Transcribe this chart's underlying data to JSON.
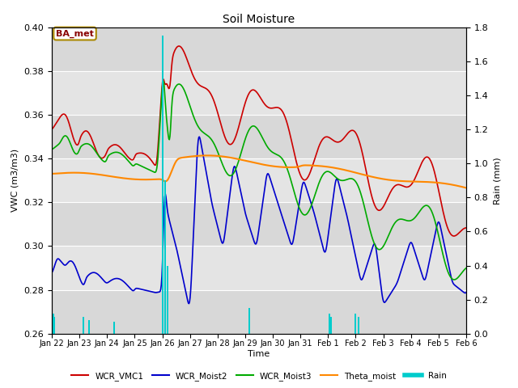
{
  "title": "Soil Moisture",
  "ylabel_left": "VWC (m3/m3)",
  "ylabel_right": "Rain (mm)",
  "xlabel": "Time",
  "ylim_left": [
    0.26,
    0.4
  ],
  "ylim_right": [
    0.0,
    1.8
  ],
  "colors": {
    "WCR_VMC1": "#cc0000",
    "WCR_Moist2": "#0000cc",
    "WCR_Moist3": "#00aa00",
    "Theta_moist": "#ff8800",
    "Rain": "#00cccc"
  },
  "bg_light": "#e8e8e8",
  "bg_dark": "#d4d4d4",
  "station_label": "BA_met",
  "station_box_facecolor": "#ffffff",
  "station_box_edgecolor": "#aa8800",
  "station_text_color": "#880000",
  "tick_labels": [
    "Jan 22",
    "Jan 23",
    "Jan 24",
    "Jan 25",
    "Jan 26",
    "Jan 27",
    "Jan 28",
    "Jan 29",
    "Jan 30",
    "Jan 31",
    "Feb 1",
    "Feb 2",
    "Feb 3",
    "Feb 4",
    "Feb 5",
    "Feb 6"
  ],
  "rain_times": [
    0.05,
    0.1,
    1.15,
    1.35,
    2.25,
    4.02,
    4.1,
    4.18,
    7.15,
    10.05,
    10.12,
    11.0,
    11.1
  ],
  "rain_heights": [
    0.12,
    0.1,
    0.1,
    0.08,
    0.07,
    1.75,
    0.9,
    0.4,
    0.15,
    0.12,
    0.1,
    0.12,
    0.1
  ]
}
